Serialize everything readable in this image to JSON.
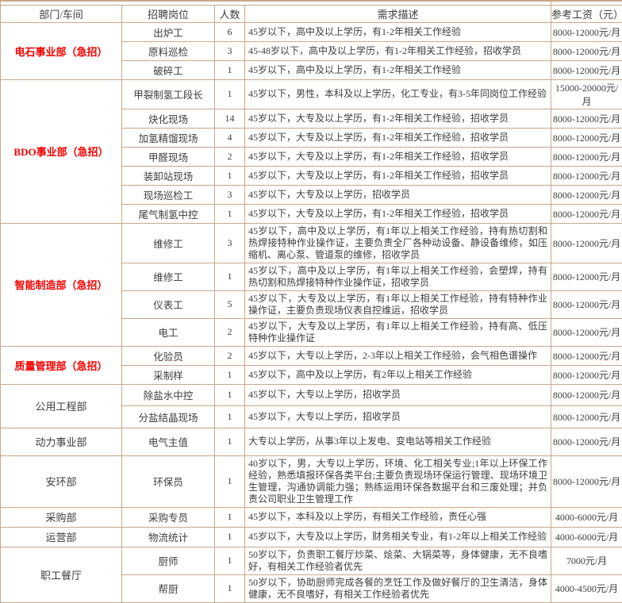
{
  "colors": {
    "border": "#c9a88a",
    "urgent_red": "#f60000",
    "text": "#3d3d3d"
  },
  "table": {
    "headers": {
      "department": "部门/车间",
      "position": "招聘岗位",
      "count": "人数",
      "description": "需求描述",
      "salary": "参考工资（元）"
    },
    "sections": [
      {
        "department": "电石事业部（急招）",
        "urgent": true,
        "rows": [
          {
            "position": "出炉工",
            "count": "6",
            "description": "45岁以下，高中及以上学历，有1-2年相关工作经验",
            "salary": "8000-12000元/月"
          },
          {
            "position": "原料巡检",
            "count": "3",
            "description": "45-48岁以下，高中及以上学历，有1-2年相关工作经验，招收学员",
            "salary": "8000-12000元/月"
          },
          {
            "position": "破碎工",
            "count": "1",
            "description": "45岁以下，高中及以上学历，有1-2年相关工作经验",
            "salary": "8000-12000元/月"
          }
        ]
      },
      {
        "department": "BDO事业部（急招）",
        "urgent": true,
        "rows": [
          {
            "position": "甲裂制氢工段长",
            "count": "1",
            "description": "45岁以下，男性，本科及以上学历，化工专业，有3-5年同岗位工作经验",
            "salary": "15000-20000元/月"
          },
          {
            "position": "炔化现场",
            "count": "14",
            "description": "45岁以下，大专及以上学历，有1-2年相关工作经验，招收学员",
            "salary": "8000-12000元/月"
          },
          {
            "position": "加氢精馏现场",
            "count": "4",
            "description": "45岁以下，大专及以上学历，有1-2年相关工作经验，招收学员",
            "salary": "8000-12000元/月"
          },
          {
            "position": "甲醛现场",
            "count": "2",
            "description": "45岁以下，大专及以上学历，有1-2年相关工作经验，招收学员",
            "salary": "8000-12000元/月"
          },
          {
            "position": "装卸站现场",
            "count": "1",
            "description": "45岁以下，大专及以上学历，有1-2年相关工作经验，招收学员",
            "salary": "8000-12000元/月"
          },
          {
            "position": "现场巡检工",
            "count": "3",
            "description": "45岁以下，大专及以上学历，招收学员",
            "salary": "8000-12000元/月"
          },
          {
            "position": "尾气制氢中控",
            "count": "1",
            "description": "45岁以下，大专及以上学历，有1-2年相关工作经验，招收学员",
            "salary": "8000-12000元/月"
          }
        ]
      },
      {
        "department": "智能制造部（急招）",
        "urgent": true,
        "rows": [
          {
            "position": "维修工",
            "count": "3",
            "description": "45岁以下，高中及以上学历，有1年以上相关工作经验，持有热切割和热焊接特种作业操作证，主要负责全厂各种动设备、静设备维修，如压缩机、离心泵、管道泵的维修，招收学员",
            "salary": "8000-12000元/月"
          },
          {
            "position": "维修工",
            "count": "1",
            "description": "45岁以下，高中及以上学历，有1年以上相关工作经验，会塑焊，持有热切割和热焊接特种作业操作证，招收学员",
            "salary": "8000-12000元/月"
          },
          {
            "position": "仪表工",
            "count": "5",
            "description": "45岁以下，大专及以上学历，有1年以上相关工作经验，持有特种作业操作证，主要负责现场仪表自控维运，招收学员",
            "salary": "8000-12000元/月"
          },
          {
            "position": "电工",
            "count": "2",
            "description": "45岁以下，大专及以上学历，有1年以上相关工作经验，持有高、低压特种作业操作证",
            "salary": "8000-12000元/月"
          }
        ]
      },
      {
        "department": "质量管理部（急招）",
        "urgent": true,
        "rows": [
          {
            "position": "化验员",
            "count": "2",
            "description": "45岁以下，大专以上学历，2-3年以上相关工作经验，会气相色谱操作",
            "salary": "8000-12000元/月"
          },
          {
            "position": "采制样",
            "count": "1",
            "description": "45岁以下，高中及以上学历，有2年以上相关工作经验",
            "salary": "8000-12000元/月"
          }
        ]
      },
      {
        "department": "公用工程部",
        "urgent": false,
        "rows": [
          {
            "position": "除盐水中控",
            "count": "1",
            "description": "45岁以下，大专以上学历，招收学员",
            "salary": "8000-12000元/月"
          },
          {
            "position": "分盐结晶现场",
            "count": "1",
            "description": "45岁以下，大专以上学历，招收学员",
            "salary": "8000-12000元/月"
          }
        ]
      },
      {
        "department": "动力事业部",
        "urgent": false,
        "rows": [
          {
            "position": "电气主值",
            "count": "1",
            "description": "大专以上学历，从事3年以上发电、变电站等相关工作经验",
            "salary": "8000-12000元/月"
          }
        ]
      },
      {
        "department": "安环部",
        "urgent": false,
        "rows": [
          {
            "position": "环保员",
            "count": "1",
            "description": "40岁以下，男，大专以上学历，环境、化工相关专业;1年以上环保工作经验，熟悉填报环保各类平台;主要负责现场环保运行管理、现场环境卫生管理，沟通协调能力强；熟练运用环保各数据平台和三废处理；并负责公司职业卫生管理工作",
            "salary": "8000-12000元/月"
          }
        ]
      },
      {
        "department": "采购部",
        "urgent": false,
        "rows": [
          {
            "position": "采购专员",
            "count": "1",
            "description": "45岁以下，本科及以上学历，有相关工作经验，责任心强",
            "salary": "4000-6000元/月"
          }
        ]
      },
      {
        "department": "运营部",
        "urgent": false,
        "rows": [
          {
            "position": "物流统计",
            "count": "1",
            "description": "45岁以下，大专及以上学历，财务相关专业，有1-2年以上相关工作经验",
            "salary": "4000-6000元/月"
          }
        ]
      },
      {
        "department": "职工餐厅",
        "urgent": false,
        "rows": [
          {
            "position": "厨师",
            "count": "1",
            "description": "50岁以下，负责职工餐厅炒菜、烩菜、大锅菜等，身体健康，无不良嗜好，有相关工作经验者优先",
            "salary": "7000元/月"
          },
          {
            "position": "帮厨",
            "count": "1",
            "description": "50岁以下，协助厨师完成各餐的烹饪工作及做好餐厅的卫生清洁，身体健康，无不良嗜好，有相关工作经验者优先",
            "salary": "4000-4500元/月"
          }
        ]
      }
    ]
  }
}
